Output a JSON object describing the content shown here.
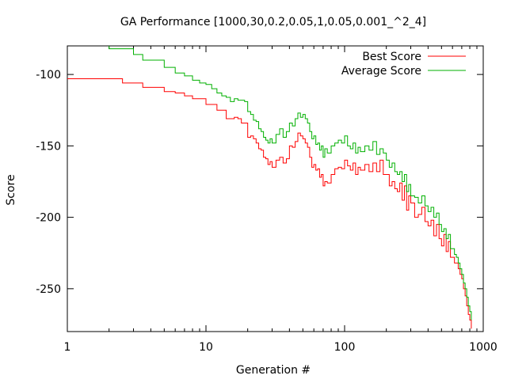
{
  "chart_data": {
    "type": "line",
    "title": "GA Performance [1000,30,0.2,0.05,1,0.05,0.001_^2_4]",
    "xlabel": "Generation #",
    "ylabel": "Score",
    "x_scale": "log",
    "xlim": [
      1,
      1000
    ],
    "ylim": [
      -280,
      -80
    ],
    "x_ticks": [
      {
        "value": 1,
        "label": "1"
      },
      {
        "value": 10,
        "label": "10"
      },
      {
        "value": 100,
        "label": "100"
      },
      {
        "value": 1000,
        "label": "1000"
      }
    ],
    "y_ticks": [
      {
        "value": -100,
        "label": "-100"
      },
      {
        "value": -150,
        "label": "-150"
      },
      {
        "value": -200,
        "label": "-200"
      },
      {
        "value": -250,
        "label": "-250"
      }
    ],
    "grid": false,
    "legend_position": "top-right",
    "series": [
      {
        "name": "Best Score",
        "color": "#ff0000",
        "x": [
          1,
          2,
          2.5,
          3,
          3.5,
          4,
          5,
          6,
          7,
          8,
          9,
          10,
          11,
          12,
          13,
          14,
          15,
          16,
          17,
          18,
          19,
          20,
          21,
          22,
          23,
          24,
          25,
          26,
          27,
          28,
          29,
          30,
          32,
          34,
          36,
          38,
          40,
          42,
          44,
          46,
          48,
          50,
          52,
          54,
          56,
          58,
          60,
          62,
          64,
          66,
          68,
          70,
          72,
          75,
          80,
          85,
          90,
          95,
          100,
          105,
          110,
          115,
          120,
          125,
          130,
          140,
          150,
          160,
          170,
          180,
          190,
          200,
          210,
          220,
          230,
          240,
          250,
          260,
          270,
          280,
          290,
          300,
          320,
          340,
          360,
          380,
          400,
          420,
          440,
          460,
          480,
          500,
          520,
          540,
          560,
          580,
          600,
          620,
          640,
          660,
          680,
          700,
          720,
          740,
          760,
          780,
          800,
          820
        ],
        "y": [
          -103,
          -103,
          -106,
          -106,
          -109,
          -109,
          -112,
          -113,
          -115,
          -117,
          -117,
          -121,
          -121,
          -125,
          -125,
          -131,
          -131,
          -130,
          -131,
          -134,
          -134,
          -144,
          -143,
          -145,
          -148,
          -152,
          -153,
          -158,
          -159,
          -163,
          -161,
          -165,
          -160,
          -158,
          -162,
          -159,
          -150,
          -151,
          -147,
          -141,
          -143,
          -145,
          -148,
          -151,
          -158,
          -165,
          -163,
          -167,
          -166,
          -172,
          -170,
          -178,
          -175,
          -176,
          -170,
          -166,
          -165,
          -166,
          -160,
          -164,
          -167,
          -162,
          -170,
          -165,
          -167,
          -163,
          -168,
          -162,
          -168,
          -160,
          -170,
          -170,
          -178,
          -175,
          -180,
          -182,
          -176,
          -188,
          -178,
          -195,
          -185,
          -190,
          -200,
          -198,
          -193,
          -203,
          -206,
          -202,
          -213,
          -205,
          -215,
          -220,
          -212,
          -224,
          -217,
          -228,
          -228,
          -232,
          -232,
          -236,
          -240,
          -243,
          -250,
          -255,
          -262,
          -268,
          -272,
          -278
        ]
      },
      {
        "name": "Average Score",
        "color": "#00b000",
        "x": [
          1,
          2,
          2.5,
          3,
          3.5,
          4,
          5,
          6,
          7,
          8,
          9,
          10,
          11,
          12,
          13,
          14,
          15,
          16,
          17,
          18,
          19,
          20,
          21,
          22,
          23,
          24,
          25,
          26,
          27,
          28,
          29,
          30,
          32,
          34,
          36,
          38,
          40,
          42,
          44,
          46,
          48,
          50,
          52,
          54,
          56,
          58,
          60,
          62,
          64,
          66,
          68,
          70,
          72,
          75,
          80,
          85,
          90,
          95,
          100,
          105,
          110,
          115,
          120,
          125,
          130,
          140,
          150,
          160,
          170,
          180,
          190,
          200,
          210,
          220,
          230,
          240,
          250,
          260,
          270,
          280,
          290,
          300,
          320,
          340,
          360,
          380,
          400,
          420,
          440,
          460,
          480,
          500,
          520,
          540,
          560,
          580,
          600,
          620,
          640,
          660,
          680,
          700,
          720,
          740,
          760,
          780,
          800,
          820
        ],
        "y": [
          -78,
          -82,
          -82,
          -86,
          -90,
          -90,
          -95,
          -99,
          -101,
          -104,
          -106,
          -107,
          -110,
          -113,
          -115,
          -116,
          -119,
          -117,
          -118,
          -118,
          -119,
          -126,
          -128,
          -132,
          -133,
          -138,
          -140,
          -144,
          -146,
          -148,
          -145,
          -148,
          -142,
          -138,
          -144,
          -140,
          -134,
          -136,
          -131,
          -127,
          -130,
          -128,
          -131,
          -134,
          -140,
          -145,
          -143,
          -149,
          -148,
          -153,
          -150,
          -158,
          -152,
          -155,
          -150,
          -148,
          -146,
          -148,
          -143,
          -150,
          -152,
          -148,
          -155,
          -151,
          -154,
          -150,
          -153,
          -147,
          -156,
          -152,
          -155,
          -160,
          -165,
          -162,
          -168,
          -170,
          -168,
          -175,
          -170,
          -182,
          -177,
          -185,
          -186,
          -190,
          -185,
          -192,
          -196,
          -193,
          -200,
          -197,
          -205,
          -210,
          -208,
          -215,
          -212,
          -222,
          -222,
          -226,
          -228,
          -232,
          -236,
          -240,
          -246,
          -250,
          -256,
          -262,
          -266,
          -272
        ]
      }
    ]
  }
}
